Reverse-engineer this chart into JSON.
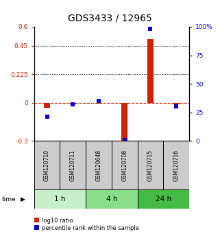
{
  "title": "GDS3433 / 12965",
  "samples": [
    "GSM120710",
    "GSM120711",
    "GSM120648",
    "GSM120708",
    "GSM120715",
    "GSM120716"
  ],
  "log10_ratio": [
    -0.04,
    -0.01,
    -0.005,
    -0.32,
    0.5,
    -0.01
  ],
  "percentile_rank": [
    21,
    32,
    35,
    1,
    98,
    30
  ],
  "ylim_left": [
    -0.3,
    0.6
  ],
  "ylim_right": [
    0,
    100
  ],
  "yticks_left": [
    -0.3,
    0,
    0.225,
    0.45,
    0.6
  ],
  "yticks_right": [
    0,
    25,
    50,
    75,
    100
  ],
  "hlines": [
    0.45,
    0.225
  ],
  "time_groups": [
    {
      "label": "1 h",
      "cols": [
        0,
        1
      ],
      "color": "#c8f0c8"
    },
    {
      "label": "4 h",
      "cols": [
        2,
        3
      ],
      "color": "#88dd88"
    },
    {
      "label": "24 h",
      "cols": [
        4,
        5
      ],
      "color": "#44bb44"
    }
  ],
  "bar_width": 0.25,
  "red_color": "#cc2200",
  "blue_color": "#0000dd",
  "marker_size": 4.5,
  "title_fontsize": 10,
  "tick_fontsize": 6.5,
  "sample_fontsize": 5.5,
  "legend_fontsize": 6,
  "time_fontsize": 7.5,
  "gray_color": "#cccccc"
}
